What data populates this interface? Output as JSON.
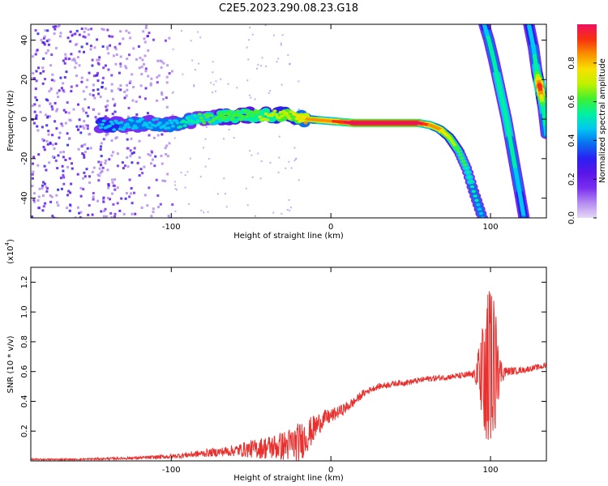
{
  "title": "C2E5.2023.290.08.23.G18",
  "colors": {
    "snr_line": "#e8302e",
    "frame": "#000000",
    "colormap": [
      "#e6d8f5",
      "#b48cf0",
      "#7a2ef0",
      "#5a16e8",
      "#2a20f2",
      "#0a70f0",
      "#00c8f0",
      "#00f0a0",
      "#40f030",
      "#c0f000",
      "#f8e000",
      "#f89000",
      "#f83010",
      "#f01060"
    ]
  },
  "chart_data": [
    {
      "id": "spectrogram",
      "type": "heatmap",
      "xlabel": "Height of straight line (km)",
      "ylabel": "Frequency (Hz)",
      "xlim": [
        -188,
        135
      ],
      "ylim": [
        -50,
        48
      ],
      "x_ticks": [
        -100,
        0,
        100
      ],
      "x_tick_labels": [
        "-100",
        "0",
        "100"
      ],
      "y_ticks": [
        -40,
        -20,
        0,
        20,
        40
      ],
      "y_tick_labels": [
        "-40",
        "-20",
        "0",
        "20",
        "40"
      ],
      "colorbar": {
        "label": "Normalized spectral amplitude",
        "range": [
          0,
          1
        ],
        "ticks": [
          0.0,
          0.2,
          0.4,
          0.6,
          0.8
        ],
        "tick_labels": [
          "0.0",
          "0.2",
          "0.4",
          "0.6",
          "0.8"
        ]
      },
      "traces": [
        {
          "description_id": "main",
          "x": [
            -145,
            -130,
            -115,
            -100,
            -85,
            -70,
            -55,
            -40,
            -25,
            -15,
            0,
            15,
            30,
            45,
            55,
            62,
            68,
            74,
            80,
            85,
            90,
            95
          ],
          "y": [
            -3,
            -3,
            -2,
            -3,
            0,
            1,
            2,
            2,
            2,
            0,
            -1,
            -2,
            -2,
            -2,
            -2,
            -3,
            -5,
            -9,
            -16,
            -25,
            -38,
            -50
          ],
          "amplitude": [
            0.3,
            0.35,
            0.35,
            0.35,
            0.45,
            0.5,
            0.5,
            0.55,
            0.6,
            0.7,
            0.75,
            0.9,
            0.95,
            0.95,
            0.9,
            0.75,
            0.7,
            0.6,
            0.5,
            0.45,
            0.4,
            0.35
          ]
        },
        {
          "description_id": "upper-branch-1",
          "x": [
            96,
            99,
            102,
            106,
            110,
            114,
            118,
            121
          ],
          "y": [
            48,
            40,
            30,
            15,
            0,
            -18,
            -36,
            -50
          ],
          "amplitude": [
            0.3,
            0.4,
            0.4,
            0.45,
            0.45,
            0.4,
            0.35,
            0.3
          ]
        },
        {
          "description_id": "upper-branch-2",
          "x": [
            124,
            127,
            129,
            131,
            133,
            135
          ],
          "y": [
            48,
            36,
            24,
            16,
            6,
            -8
          ],
          "amplitude": [
            0.3,
            0.35,
            0.45,
            0.85,
            0.45,
            0.35
          ]
        }
      ],
      "noise_region_x": [
        -188,
        -100
      ],
      "scatter_region_x": [
        -100,
        -20
      ]
    },
    {
      "id": "snr",
      "type": "line",
      "xlabel": "Height of straight line (km)",
      "ylabel": "SNR (10 * v/v)",
      "y_multiplier_label": "(x10",
      "y_multiplier_exp": "4",
      "y_multiplier_close": ")",
      "xlim": [
        -188,
        135
      ],
      "ylim": [
        0,
        1.3
      ],
      "x_ticks": [
        -100,
        0,
        100
      ],
      "x_tick_labels": [
        "-100",
        "0",
        "100"
      ],
      "y_ticks": [
        0.2,
        0.4,
        0.6,
        0.8,
        1.0,
        1.2
      ],
      "y_tick_labels": [
        "0.2",
        "0.4",
        "0.6",
        "0.8",
        "1.0",
        "1.2"
      ],
      "series": [
        {
          "values_x": [
            -188,
            -160,
            -140,
            -120,
            -100,
            -90,
            -80,
            -70,
            -60,
            -50,
            -40,
            -30,
            -20,
            -12,
            -5,
            0,
            5,
            10,
            15,
            20,
            25,
            30,
            40,
            50,
            60,
            70,
            80,
            90,
            94,
            97,
            100,
            103,
            106,
            110,
            120,
            130,
            135
          ],
          "values_y": [
            0.01,
            0.01,
            0.015,
            0.02,
            0.03,
            0.04,
            0.05,
            0.06,
            0.07,
            0.08,
            0.09,
            0.1,
            0.12,
            0.2,
            0.28,
            0.3,
            0.33,
            0.36,
            0.4,
            0.45,
            0.48,
            0.5,
            0.52,
            0.53,
            0.55,
            0.56,
            0.57,
            0.58,
            0.6,
            0.6,
            0.62,
            0.62,
            0.6,
            0.6,
            0.61,
            0.63,
            0.64
          ],
          "noise_amplitude_y": [
            0.005,
            0.005,
            0.008,
            0.01,
            0.015,
            0.02,
            0.025,
            0.03,
            0.04,
            0.06,
            0.08,
            0.1,
            0.14,
            0.1,
            0.06,
            0.05,
            0.04,
            0.04,
            0.03,
            0.025,
            0.02,
            0.02,
            0.02,
            0.02,
            0.02,
            0.02,
            0.02,
            0.03,
            0.25,
            0.45,
            0.6,
            0.4,
            0.1,
            0.03,
            0.02,
            0.02,
            0.02
          ]
        }
      ]
    }
  ]
}
